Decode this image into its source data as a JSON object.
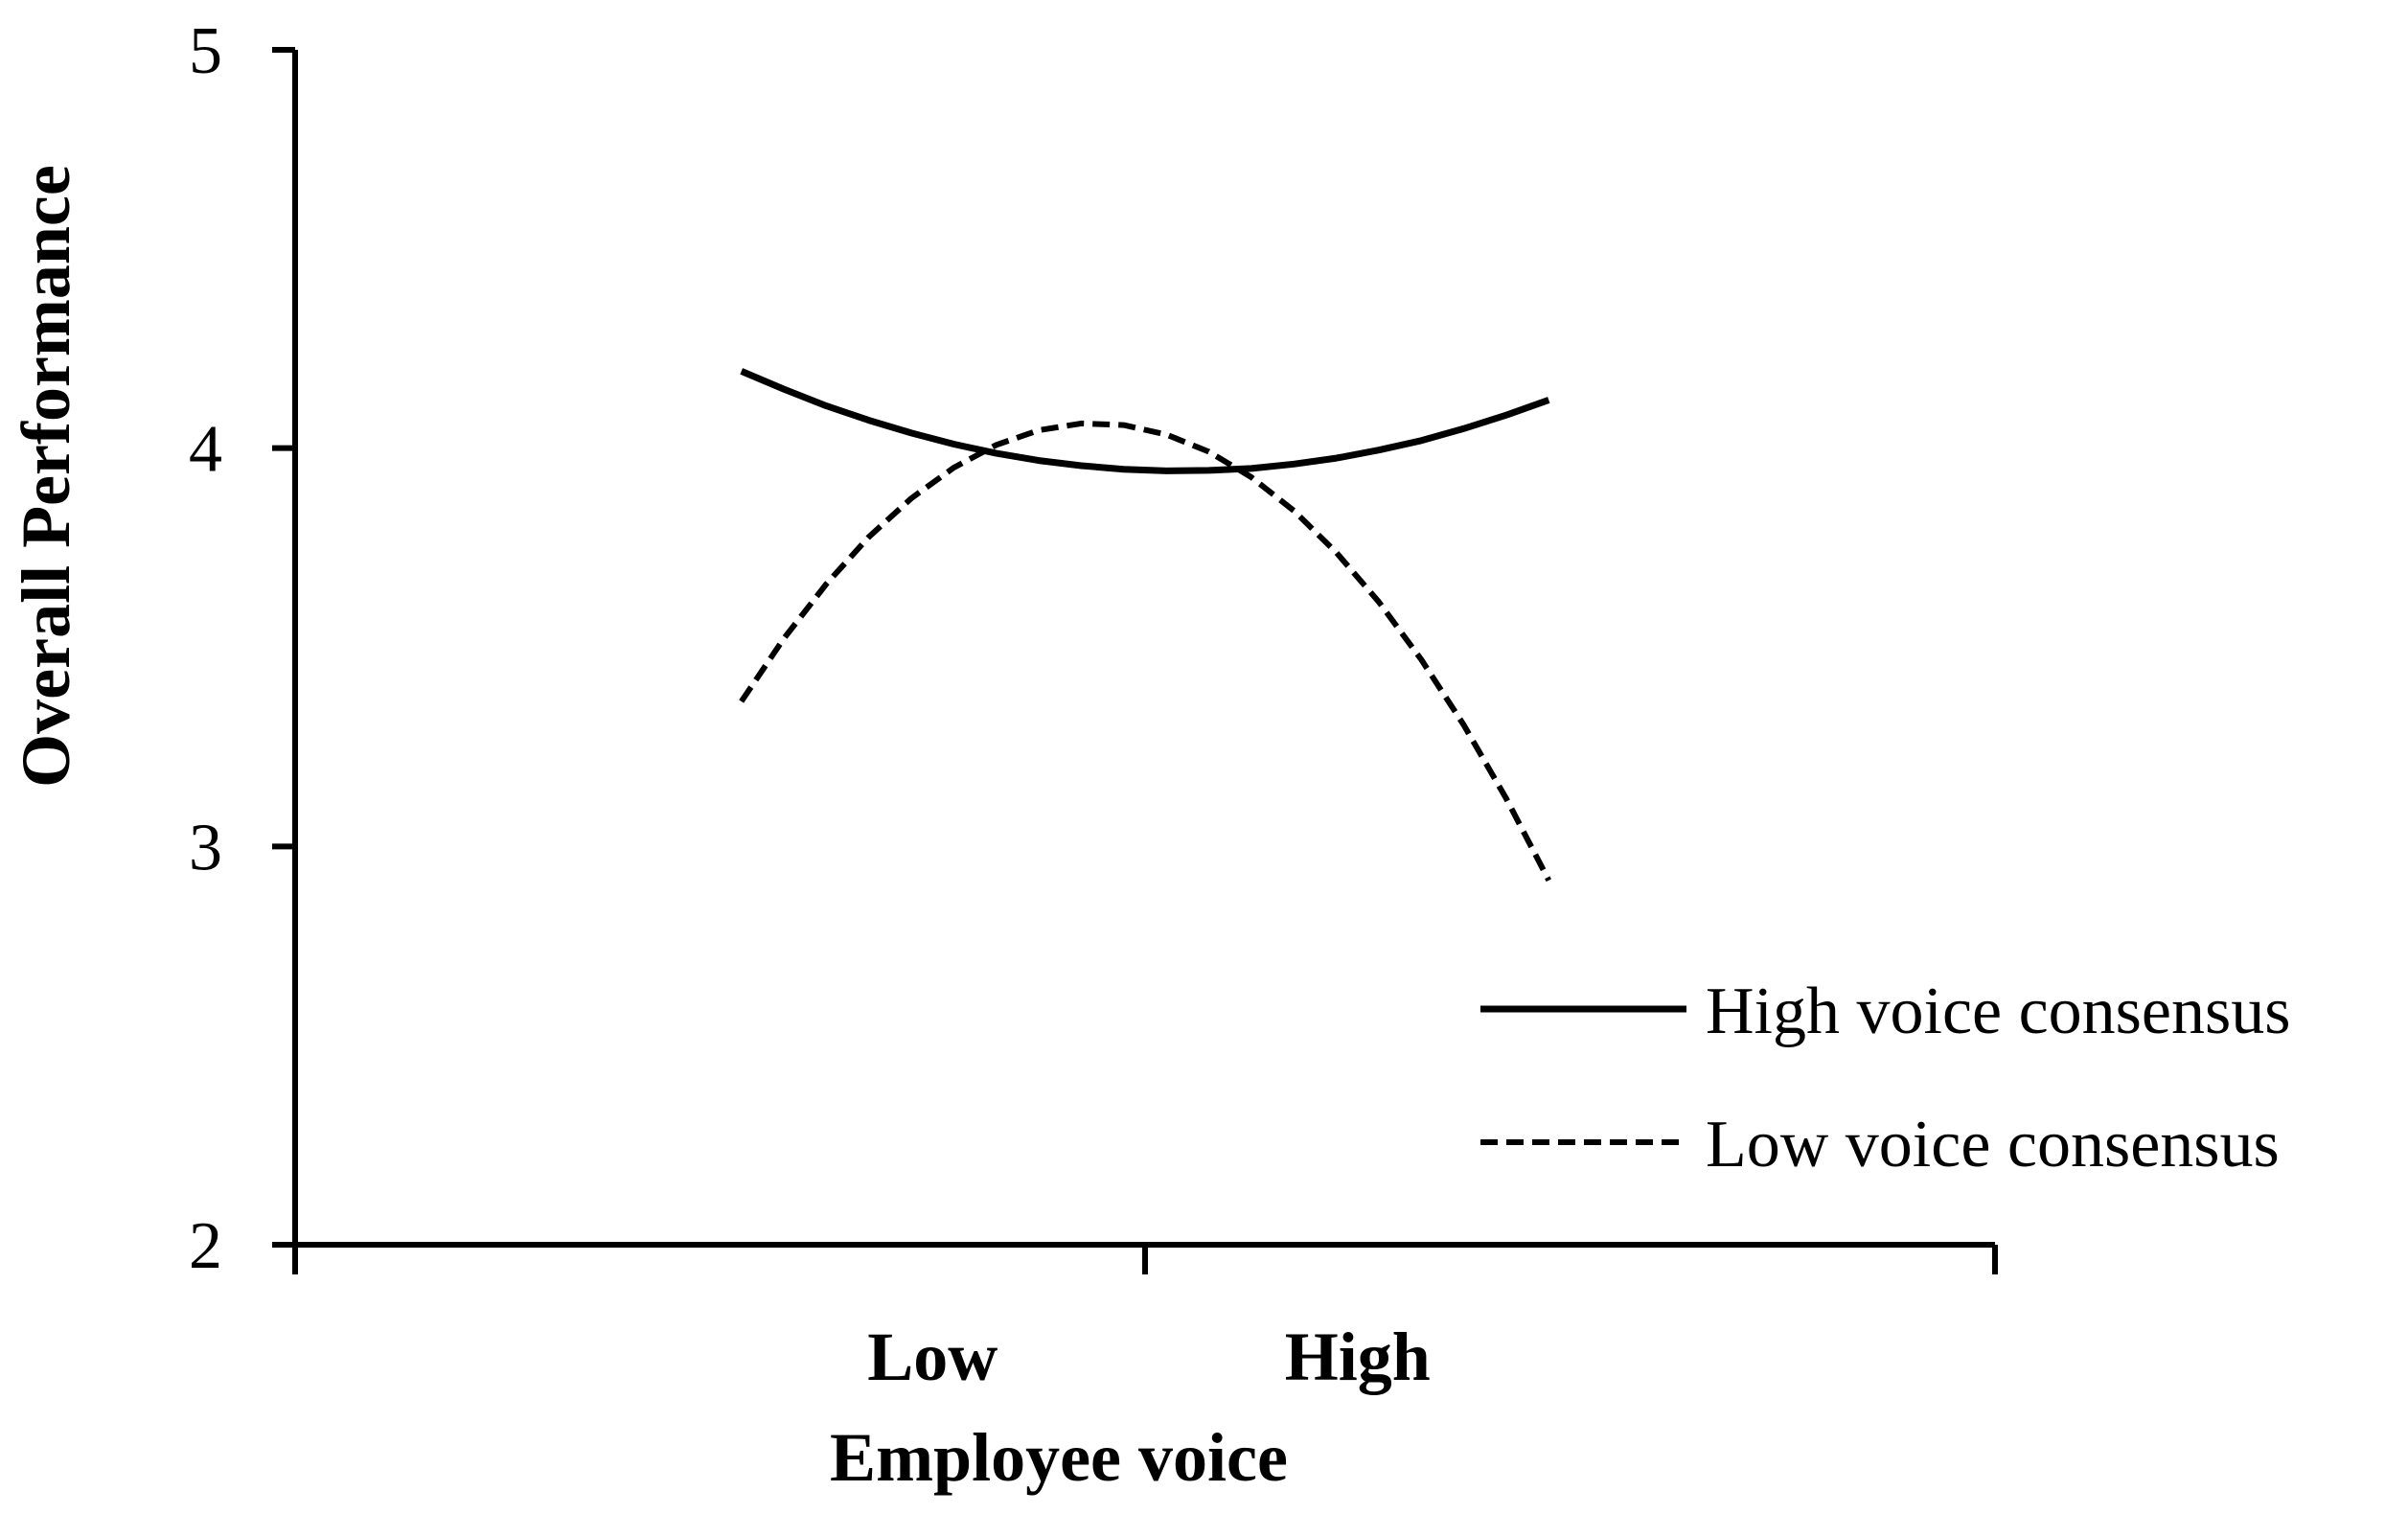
{
  "chart_data": {
    "type": "line",
    "title": "",
    "xlabel": "Employee voice",
    "ylabel": "Overall Performance",
    "ylim": [
      2,
      5
    ],
    "yticks": [
      "2",
      "3",
      "4",
      "5"
    ],
    "categories": [
      "Low",
      "High"
    ],
    "x_range": [
      -1.5,
      2.5
    ],
    "x": [
      -0.45,
      -0.35,
      -0.25,
      -0.15,
      -0.05,
      0.05,
      0.15,
      0.25,
      0.35,
      0.45,
      0.55,
      0.65,
      0.75,
      0.85,
      0.95,
      1.05,
      1.15,
      1.25,
      1.35,
      1.45
    ],
    "series": [
      {
        "name": "High voice consensus",
        "line_style": "solid",
        "values": [
          4.193,
          4.148,
          4.106,
          4.07,
          4.038,
          4.01,
          3.987,
          3.969,
          3.956,
          3.947,
          3.943,
          3.944,
          3.949,
          3.96,
          3.975,
          3.995,
          4.019,
          4.049,
          4.083,
          4.121
        ]
      },
      {
        "name": "Low voice consensus",
        "line_style": "dashed",
        "values": [
          3.364,
          3.522,
          3.659,
          3.777,
          3.874,
          3.951,
          4.008,
          4.045,
          4.062,
          4.058,
          4.034,
          3.991,
          3.927,
          3.843,
          3.738,
          3.614,
          3.469,
          3.305,
          3.12,
          2.915
        ]
      }
    ],
    "legend": {
      "position": "bottom-right"
    },
    "grid": false,
    "colors": {
      "lines": "#000000",
      "axes": "#000000"
    }
  }
}
